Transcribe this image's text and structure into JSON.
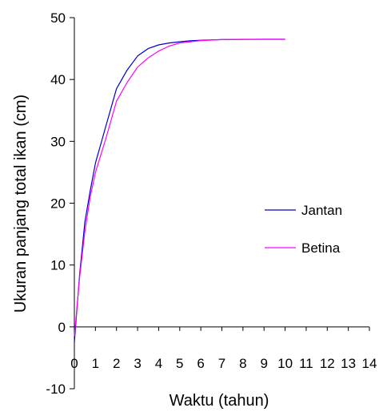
{
  "chart_data": {
    "type": "line",
    "title": "",
    "xlabel": "Waktu (tahun)",
    "ylabel": "Ukuran panjang total ikan (cm)",
    "xlim": [
      0,
      14
    ],
    "ylim": [
      -10,
      50
    ],
    "x_ticks": [
      "0",
      "1",
      "2",
      "3",
      "4",
      "5",
      "6",
      "7",
      "8",
      "9",
      "10",
      "11",
      "12",
      "13",
      "14"
    ],
    "y_ticks": [
      "-10",
      "0",
      "10",
      "20",
      "30",
      "40",
      "50"
    ],
    "grid": false,
    "legend_position": "right",
    "series": [
      {
        "name": "Jantan",
        "color": "#0000cc",
        "x": [
          0,
          0.25,
          0.5,
          0.75,
          1,
          1.5,
          2,
          2.5,
          3,
          3.5,
          4,
          4.5,
          5,
          5.5,
          6,
          7,
          8,
          9,
          10
        ],
        "y": [
          -2.5,
          8.5,
          17,
          22,
          26.5,
          32.5,
          38.5,
          41.5,
          43.8,
          45,
          45.6,
          45.9,
          46.1,
          46.25,
          46.35,
          46.45,
          46.48,
          46.5,
          46.5
        ]
      },
      {
        "name": "Betina",
        "color": "#ff00ff",
        "x": [
          0,
          0.25,
          0.5,
          0.75,
          1,
          1.5,
          2,
          2.5,
          3,
          3.5,
          4,
          4.5,
          5,
          5.5,
          6,
          7,
          8,
          9,
          10
        ],
        "y": [
          -1.5,
          8,
          15.5,
          21,
          25,
          30.5,
          36.5,
          39.5,
          42,
          43.5,
          44.6,
          45.4,
          45.9,
          46.1,
          46.3,
          46.45,
          46.5,
          46.5,
          46.5
        ]
      }
    ]
  }
}
